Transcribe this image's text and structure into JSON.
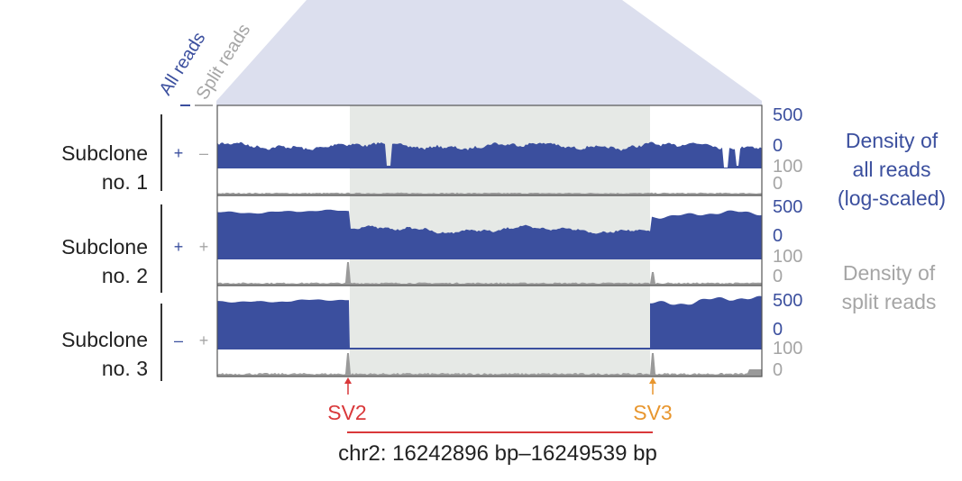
{
  "legend": {
    "all_reads": "All reads",
    "split_reads": "Split reads"
  },
  "subclones": [
    {
      "name_line1": "Subclone",
      "name_line2": "no. 1",
      "genotype": [
        "+",
        "–"
      ],
      "has_deletion": false
    },
    {
      "name_line1": "Subclone",
      "name_line2": "no. 2",
      "genotype": [
        "+",
        "+"
      ],
      "has_deletion": true
    },
    {
      "name_line1": "Subclone",
      "name_line2": "no. 3",
      "genotype": [
        "–",
        "+"
      ],
      "has_deletion": true
    }
  ],
  "axis_ticks": {
    "all_reads_max": "500",
    "all_reads_min": "0",
    "split_reads_max": "100",
    "split_reads_min": "0"
  },
  "side_labels": {
    "all_reads": [
      "Density of",
      "all reads",
      "(log-scaled)"
    ],
    "split_reads": [
      "Density of",
      "split reads"
    ]
  },
  "breakpoints": [
    {
      "label": "SV2",
      "color": "#d9383a"
    },
    {
      "label": "SV3",
      "color": "#e8962e"
    }
  ],
  "region_label": "chr2: 16242896 bp–16249539 bp",
  "colors": {
    "all_reads": "#3b4f9e",
    "split_reads": "#9a9a9a",
    "highlight": "#e6e9e6",
    "zoom_fan": "#dcdfee",
    "frame": "#444444"
  }
}
